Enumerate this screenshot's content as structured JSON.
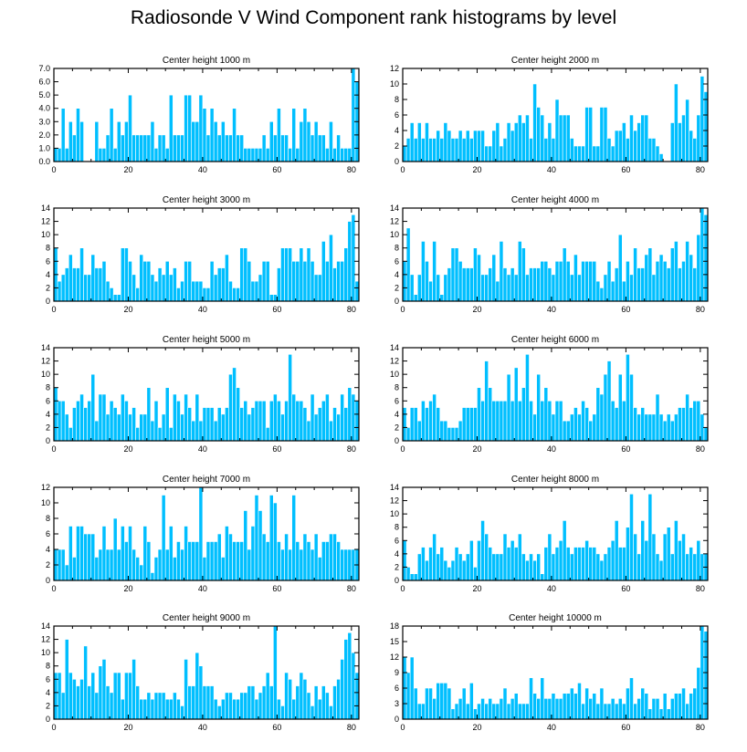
{
  "title": "Radiosonde V Wind Component rank histograms by level",
  "colors": {
    "bar": "#00BFFF",
    "bar_edge": "#ffffff",
    "axis": "#000000",
    "background": "#ffffff"
  },
  "chart_data": [
    {
      "type": "bar",
      "title": "Center height 1000 m",
      "xlim": [
        0,
        82
      ],
      "ylim": [
        0,
        7
      ],
      "xticks": [
        0,
        20,
        40,
        60,
        80
      ],
      "xtick_labels": [
        "0",
        "20",
        "40",
        "60",
        "80"
      ],
      "yticks": [
        0,
        1,
        2,
        3,
        4,
        5,
        6,
        7
      ],
      "ytick_labels": [
        "0.0",
        "1.0",
        "2.0",
        "3.0",
        "4.0",
        "5.0",
        "6.0",
        "7.0"
      ],
      "values": [
        1,
        1,
        4,
        1,
        3,
        2,
        4,
        3,
        0,
        0,
        0,
        3,
        1,
        1,
        2,
        4,
        1,
        3,
        2,
        3,
        5,
        2,
        2,
        2,
        2,
        2,
        3,
        1,
        2,
        2,
        1,
        5,
        2,
        2,
        2,
        5,
        5,
        3,
        3,
        5,
        4,
        2,
        4,
        3,
        2,
        3,
        2,
        2,
        4,
        2,
        2,
        1,
        1,
        1,
        1,
        1,
        2,
        1,
        3,
        2,
        4,
        2,
        2,
        1,
        4,
        1,
        3,
        4,
        3,
        2,
        3,
        2,
        2,
        1,
        3,
        1,
        2,
        1,
        1,
        1,
        7,
        6
      ]
    },
    {
      "type": "bar",
      "title": "Center height 2000 m",
      "xlim": [
        0,
        82
      ],
      "ylim": [
        0,
        12
      ],
      "xticks": [
        0,
        20,
        40,
        60,
        80
      ],
      "xtick_labels": [
        "0",
        "20",
        "40",
        "60",
        "80"
      ],
      "yticks": [
        0,
        2,
        4,
        6,
        8,
        10,
        12
      ],
      "ytick_labels": [
        "0",
        "2",
        "4",
        "6",
        "8",
        "10",
        "12"
      ],
      "values": [
        2,
        3,
        5,
        3,
        5,
        3,
        5,
        3,
        3,
        4,
        3,
        5,
        4,
        3,
        3,
        4,
        3,
        4,
        3,
        4,
        4,
        4,
        2,
        2,
        4,
        5,
        2,
        3,
        5,
        4,
        5,
        6,
        5,
        6,
        3,
        10,
        7,
        6,
        3,
        5,
        3,
        8,
        6,
        6,
        6,
        3,
        2,
        2,
        2,
        7,
        7,
        2,
        2,
        7,
        7,
        3,
        2,
        4,
        4,
        5,
        3,
        6,
        4,
        5,
        6,
        6,
        3,
        3,
        2,
        1,
        0,
        0,
        5,
        10,
        5,
        6,
        8,
        4,
        3,
        6,
        11,
        9
      ]
    },
    {
      "type": "bar",
      "title": "Center height 3000 m",
      "xlim": [
        0,
        82
      ],
      "ylim": [
        0,
        14
      ],
      "xticks": [
        0,
        20,
        40,
        60,
        80
      ],
      "xtick_labels": [
        "0",
        "20",
        "40",
        "60",
        "80"
      ],
      "yticks": [
        0,
        2,
        4,
        6,
        8,
        10,
        12,
        14
      ],
      "ytick_labels": [
        "0",
        "2",
        "4",
        "6",
        "8",
        "10",
        "12",
        "14"
      ],
      "values": [
        8,
        3,
        4,
        5,
        7,
        5,
        5,
        8,
        4,
        4,
        7,
        5,
        5,
        6,
        3,
        2,
        1,
        1,
        8,
        8,
        6,
        4,
        2,
        7,
        6,
        6,
        4,
        3,
        5,
        4,
        6,
        4,
        5,
        2,
        3,
        6,
        6,
        3,
        3,
        3,
        2,
        2,
        6,
        4,
        5,
        5,
        7,
        3,
        2,
        2,
        8,
        8,
        6,
        3,
        3,
        4,
        6,
        6,
        1,
        1,
        5,
        8,
        8,
        8,
        6,
        6,
        8,
        6,
        8,
        6,
        4,
        4,
        9,
        6,
        10,
        5,
        6,
        6,
        8,
        12,
        13,
        3
      ]
    },
    {
      "type": "bar",
      "title": "Center height 4000 m",
      "xlim": [
        0,
        82
      ],
      "ylim": [
        0,
        14
      ],
      "xticks": [
        0,
        20,
        40,
        60,
        80
      ],
      "xtick_labels": [
        "0",
        "20",
        "40",
        "60",
        "80"
      ],
      "yticks": [
        0,
        2,
        4,
        6,
        8,
        10,
        12,
        14
      ],
      "ytick_labels": [
        "0",
        "2",
        "4",
        "6",
        "8",
        "10",
        "12",
        "14"
      ],
      "values": [
        6,
        11,
        4,
        1,
        4,
        9,
        6,
        3,
        9,
        4,
        1,
        4,
        5,
        8,
        8,
        6,
        5,
        5,
        5,
        8,
        7,
        4,
        4,
        5,
        7,
        3,
        9,
        5,
        4,
        5,
        4,
        9,
        8,
        4,
        5,
        5,
        5,
        6,
        6,
        5,
        4,
        6,
        6,
        8,
        6,
        4,
        7,
        4,
        6,
        6,
        6,
        6,
        3,
        2,
        4,
        6,
        3,
        5,
        10,
        3,
        6,
        4,
        8,
        5,
        5,
        7,
        8,
        4,
        6,
        7,
        6,
        5,
        8,
        9,
        5,
        6,
        9,
        7,
        5,
        10,
        14,
        13
      ]
    },
    {
      "type": "bar",
      "title": "Center height 5000 m",
      "xlim": [
        0,
        82
      ],
      "ylim": [
        0,
        14
      ],
      "xticks": [
        0,
        20,
        40,
        60,
        80
      ],
      "xtick_labels": [
        "0",
        "20",
        "40",
        "60",
        "80"
      ],
      "yticks": [
        0,
        2,
        4,
        6,
        8,
        10,
        12,
        14
      ],
      "ytick_labels": [
        "0",
        "2",
        "4",
        "6",
        "8",
        "10",
        "12",
        "14"
      ],
      "values": [
        8,
        6,
        6,
        4,
        2,
        5,
        6,
        7,
        5,
        6,
        10,
        3,
        7,
        7,
        4,
        6,
        5,
        4,
        7,
        6,
        4,
        5,
        2,
        4,
        4,
        8,
        3,
        6,
        2,
        4,
        8,
        2,
        7,
        6,
        4,
        7,
        5,
        3,
        7,
        3,
        5,
        5,
        5,
        3,
        5,
        4,
        5,
        10,
        11,
        8,
        5,
        6,
        4,
        5,
        6,
        6,
        6,
        2,
        6,
        7,
        6,
        4,
        6,
        13,
        7,
        6,
        6,
        5,
        3,
        7,
        4,
        5,
        6,
        7,
        3,
        5,
        4,
        7,
        5,
        8,
        7,
        6
      ]
    },
    {
      "type": "bar",
      "title": "Center height 6000 m",
      "xlim": [
        0,
        82
      ],
      "ylim": [
        0,
        14
      ],
      "xticks": [
        0,
        20,
        40,
        60,
        80
      ],
      "xtick_labels": [
        "0",
        "20",
        "40",
        "60",
        "80"
      ],
      "yticks": [
        0,
        2,
        4,
        6,
        8,
        10,
        12,
        14
      ],
      "ytick_labels": [
        "0",
        "2",
        "4",
        "6",
        "8",
        "10",
        "12",
        "14"
      ],
      "values": [
        5,
        2,
        5,
        5,
        3,
        6,
        5,
        6,
        7,
        5,
        3,
        3,
        2,
        2,
        2,
        3,
        5,
        5,
        5,
        5,
        8,
        6,
        12,
        8,
        6,
        6,
        6,
        6,
        10,
        6,
        11,
        6,
        8,
        13,
        6,
        4,
        10,
        6,
        8,
        6,
        4,
        6,
        6,
        3,
        3,
        4,
        5,
        4,
        6,
        5,
        3,
        4,
        8,
        7,
        10,
        12,
        6,
        5,
        10,
        6,
        13,
        10,
        5,
        4,
        5,
        4,
        4,
        4,
        7,
        4,
        3,
        4,
        3,
        4,
        5,
        5,
        7,
        5,
        6,
        6,
        4,
        2
      ]
    },
    {
      "type": "bar",
      "title": "Center height 7000 m",
      "xlim": [
        0,
        82
      ],
      "ylim": [
        0,
        12
      ],
      "xticks": [
        0,
        20,
        40,
        60,
        80
      ],
      "xtick_labels": [
        "0",
        "20",
        "40",
        "60",
        "80"
      ],
      "yticks": [
        0,
        2,
        4,
        6,
        8,
        10,
        12
      ],
      "ytick_labels": [
        "0",
        "2",
        "4",
        "6",
        "8",
        "10",
        "12"
      ],
      "values": [
        4,
        4,
        4,
        2,
        7,
        3,
        7,
        7,
        6,
        6,
        6,
        3,
        4,
        7,
        4,
        4,
        8,
        4,
        7,
        5,
        7,
        4,
        3,
        2,
        7,
        5,
        1,
        3,
        4,
        11,
        4,
        7,
        3,
        5,
        4,
        7,
        5,
        5,
        5,
        12,
        3,
        5,
        5,
        5,
        6,
        3,
        7,
        6,
        5,
        5,
        5,
        9,
        4,
        7,
        11,
        9,
        6,
        5,
        11,
        10,
        5,
        4,
        6,
        4,
        11,
        5,
        4,
        6,
        5,
        4,
        6,
        3,
        5,
        5,
        6,
        6,
        5,
        4,
        4,
        4,
        4,
        4
      ]
    },
    {
      "type": "bar",
      "title": "Center height 8000 m",
      "xlim": [
        0,
        82
      ],
      "ylim": [
        0,
        14
      ],
      "xticks": [
        0,
        20,
        40,
        60,
        80
      ],
      "xtick_labels": [
        "0",
        "20",
        "40",
        "60",
        "80"
      ],
      "yticks": [
        0,
        2,
        4,
        6,
        8,
        10,
        12,
        14
      ],
      "ytick_labels": [
        "0",
        "2",
        "4",
        "6",
        "8",
        "10",
        "12",
        "14"
      ],
      "values": [
        6,
        2,
        1,
        1,
        4,
        5,
        3,
        5,
        7,
        4,
        5,
        3,
        2,
        3,
        5,
        4,
        3,
        4,
        6,
        2,
        6,
        9,
        7,
        5,
        4,
        4,
        4,
        7,
        5,
        6,
        5,
        7,
        4,
        3,
        4,
        3,
        4,
        1,
        5,
        7,
        4,
        5,
        6,
        9,
        5,
        4,
        5,
        5,
        5,
        6,
        5,
        5,
        4,
        3,
        4,
        5,
        6,
        9,
        5,
        5,
        8,
        13,
        7,
        4,
        9,
        6,
        13,
        7,
        4,
        3,
        7,
        8,
        4,
        9,
        6,
        7,
        4,
        5,
        4,
        6,
        4,
        4
      ]
    },
    {
      "type": "bar",
      "title": "Center height 9000 m",
      "xlim": [
        0,
        82
      ],
      "ylim": [
        0,
        14
      ],
      "xticks": [
        0,
        20,
        40,
        60,
        80
      ],
      "xtick_labels": [
        "0",
        "20",
        "40",
        "60",
        "80"
      ],
      "yticks": [
        0,
        2,
        4,
        6,
        8,
        10,
        12,
        14
      ],
      "ytick_labels": [
        "0",
        "2",
        "4",
        "6",
        "8",
        "10",
        "12",
        "14"
      ],
      "values": [
        7,
        7,
        4,
        12,
        7,
        6,
        5,
        6,
        11,
        5,
        7,
        4,
        8,
        9,
        5,
        4,
        7,
        7,
        3,
        7,
        7,
        9,
        5,
        3,
        3,
        4,
        3,
        4,
        4,
        4,
        3,
        3,
        4,
        3,
        2,
        9,
        5,
        5,
        10,
        8,
        5,
        5,
        5,
        3,
        2,
        3,
        4,
        4,
        3,
        3,
        4,
        4,
        5,
        5,
        3,
        4,
        5,
        7,
        5,
        14,
        3,
        2,
        7,
        6,
        3,
        5,
        7,
        6,
        4,
        2,
        5,
        3,
        5,
        4,
        2,
        5,
        6,
        9,
        12,
        13,
        10,
        7
      ]
    },
    {
      "type": "bar",
      "title": "Center height 10000 m",
      "xlim": [
        0,
        82
      ],
      "ylim": [
        0,
        18
      ],
      "xticks": [
        0,
        20,
        40,
        60,
        80
      ],
      "xtick_labels": [
        "0",
        "20",
        "40",
        "60",
        "80"
      ],
      "yticks": [
        0,
        3,
        6,
        9,
        12,
        15,
        18
      ],
      "ytick_labels": [
        "0",
        "3",
        "6",
        "9",
        "12",
        "15",
        "18"
      ],
      "values": [
        12,
        9,
        12,
        6,
        3,
        3,
        6,
        6,
        4,
        7,
        7,
        7,
        6,
        2,
        3,
        4,
        6,
        3,
        7,
        2,
        3,
        4,
        3,
        4,
        3,
        3,
        4,
        6,
        3,
        4,
        5,
        3,
        3,
        3,
        8,
        5,
        4,
        8,
        4,
        4,
        5,
        4,
        4,
        5,
        5,
        6,
        5,
        7,
        3,
        6,
        4,
        5,
        3,
        6,
        3,
        3,
        4,
        3,
        4,
        3,
        6,
        8,
        3,
        4,
        6,
        5,
        2,
        4,
        4,
        2,
        5,
        2,
        4,
        5,
        5,
        6,
        3,
        5,
        6,
        10,
        18,
        17
      ]
    }
  ]
}
